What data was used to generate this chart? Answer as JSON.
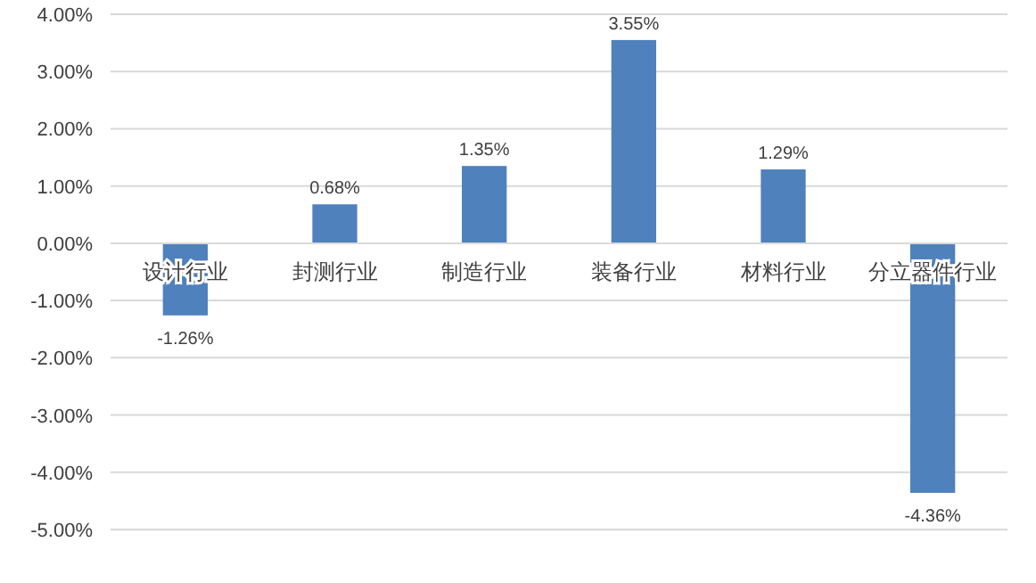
{
  "chart_data": {
    "type": "bar",
    "categories": [
      "设计行业",
      "封测行业",
      "制造行业",
      "装备行业",
      "材料行业",
      "分立器件行业"
    ],
    "values": [
      -1.26,
      0.68,
      1.35,
      3.55,
      1.29,
      -4.36
    ],
    "value_labels": [
      "-1.26%",
      "0.68%",
      "1.35%",
      "3.55%",
      "1.29%",
      "-4.36%"
    ],
    "color": "#4f81bd",
    "ylim": [
      -5,
      4
    ],
    "yticks": [
      {
        "value": 4,
        "label": "4.00%"
      },
      {
        "value": 3,
        "label": "3.00%"
      },
      {
        "value": 2,
        "label": "2.00%"
      },
      {
        "value": 1,
        "label": "1.00%"
      },
      {
        "value": 0,
        "label": "0.00%"
      },
      {
        "value": -1,
        "label": "-1.00%"
      },
      {
        "value": -2,
        "label": "-2.00%"
      },
      {
        "value": -3,
        "label": "-3.00%"
      },
      {
        "value": -4,
        "label": "-4.00%"
      },
      {
        "value": -5,
        "label": "-5.00%"
      }
    ],
    "grid": "y"
  }
}
